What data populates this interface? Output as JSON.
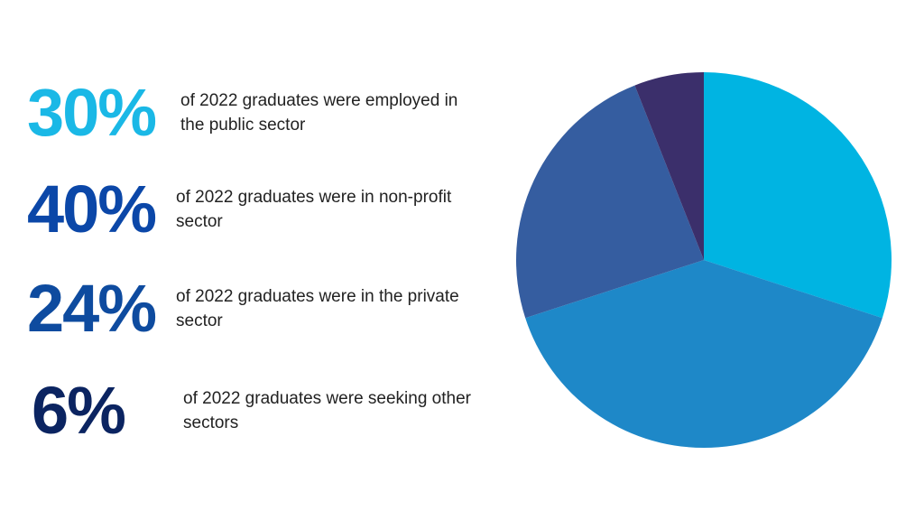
{
  "chart_data": {
    "type": "pie",
    "categories": [
      "of 2022 graduates were employed in the public sector",
      "of 2022 graduates were in non-profit sector",
      "of 2022 graduates were in the private sector",
      "of 2022 graduates were seeking other sectors"
    ],
    "values": [
      30,
      40,
      24,
      6
    ],
    "value_labels": [
      "30%",
      "40%",
      "24%",
      "6%"
    ],
    "colors": [
      "#00b4e2",
      "#1e88c8",
      "#355da0",
      "#3b2f6b"
    ],
    "label_colors": [
      "#1ab8e6",
      "#0b47a8",
      "#0e4b9f",
      "#0b2461"
    ]
  }
}
